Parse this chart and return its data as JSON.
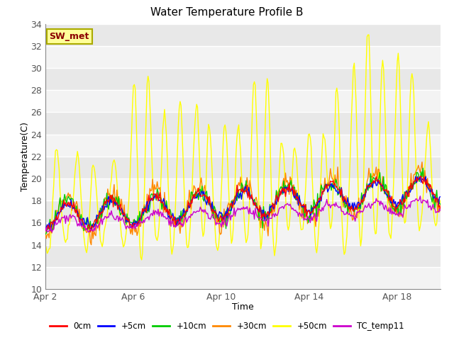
{
  "title": "Water Temperature Profile B",
  "xlabel": "Time",
  "ylabel": "Temperature(C)",
  "ylim": [
    10,
    34
  ],
  "yticks": [
    10,
    12,
    14,
    16,
    18,
    20,
    22,
    24,
    26,
    28,
    30,
    32,
    34
  ],
  "bg_color": "#e8e8e8",
  "annotation_text": "SW_met",
  "annotation_facecolor": "#ffff99",
  "annotation_edgecolor": "#aaaa00",
  "annotation_textcolor": "#8b0000",
  "series_colors": {
    "0cm": "#ff0000",
    "+5cm": "#0000ff",
    "+10cm": "#00cc00",
    "+30cm": "#ff8800",
    "+50cm": "#ffff00",
    "TC_temp11": "#cc00cc"
  },
  "legend_labels": [
    "0cm",
    "+5cm",
    "+10cm",
    "+30cm",
    "+50cm",
    "TC_temp11"
  ],
  "n_points": 432,
  "xtick_positions": [
    0,
    96,
    192,
    288,
    384
  ],
  "xtick_labels": [
    "Apr 2",
    "Apr 6",
    "Apr 10",
    "Apr 14",
    "Apr 18"
  ]
}
